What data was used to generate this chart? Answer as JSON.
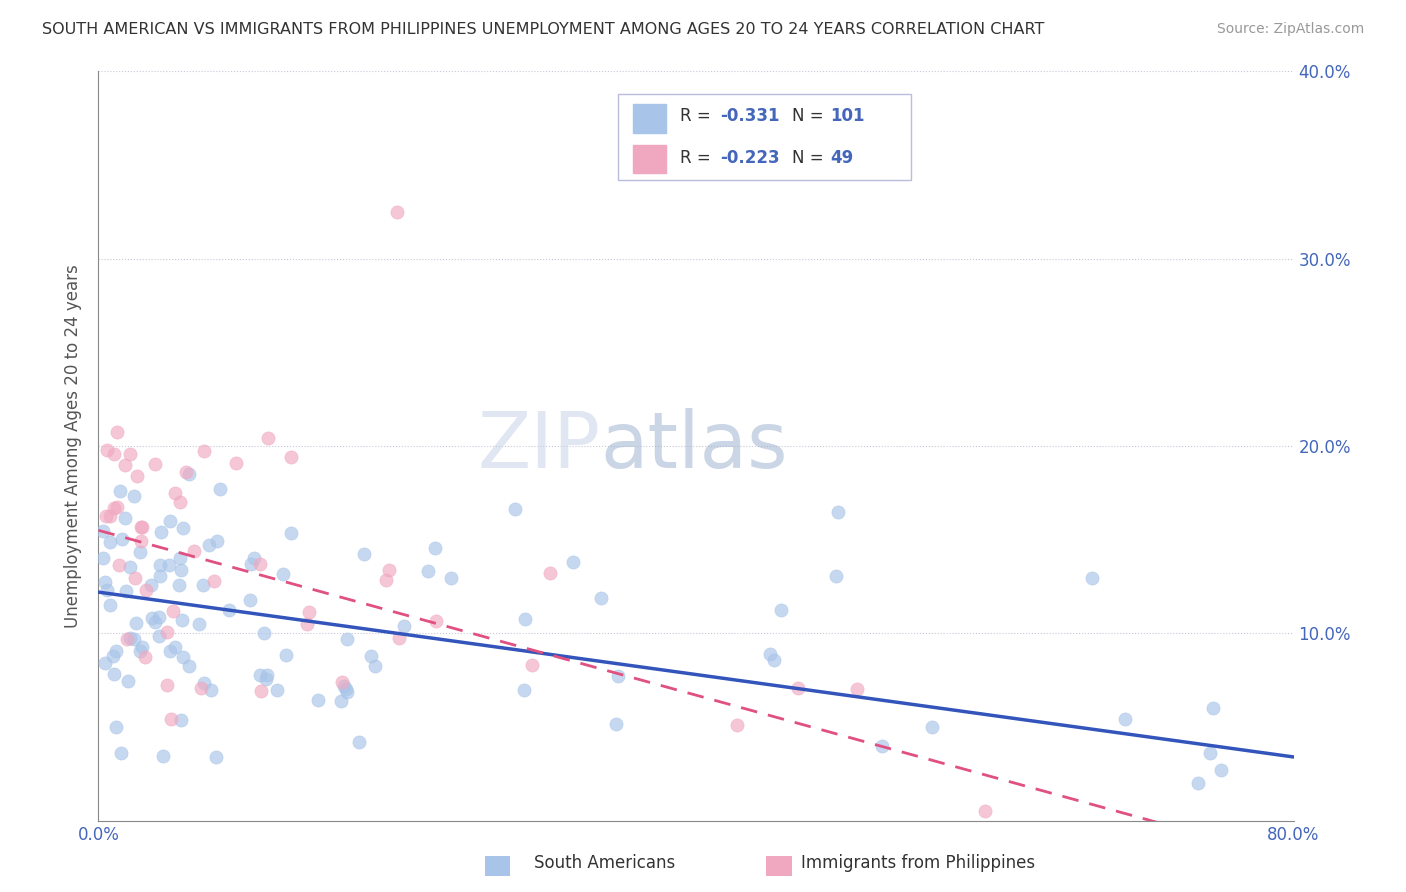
{
  "title": "SOUTH AMERICAN VS IMMIGRANTS FROM PHILIPPINES UNEMPLOYMENT AMONG AGES 20 TO 24 YEARS CORRELATION CHART",
  "source": "Source: ZipAtlas.com",
  "ylabel": "Unemployment Among Ages 20 to 24 years",
  "xlim": [
    0.0,
    0.8
  ],
  "ylim": [
    0.0,
    0.4
  ],
  "sa_color": "#a8c4e8",
  "ph_color": "#f0a8c0",
  "sa_line_color": "#3355bb",
  "ph_line_color": "#e05080",
  "background_color": "#ffffff",
  "grid_color": "#c8c8d8",
  "watermark_zip_color": "#c8d4e8",
  "watermark_atlas_color": "#a8b8d8",
  "tick_color": "#4466bb",
  "sa_R": "-0.331",
  "sa_N": "101",
  "ph_R": "-0.223",
  "ph_N": "49",
  "sa_intercept": 0.12,
  "sa_slope": -0.105,
  "ph_intercept": 0.15,
  "ph_slope": -0.2
}
